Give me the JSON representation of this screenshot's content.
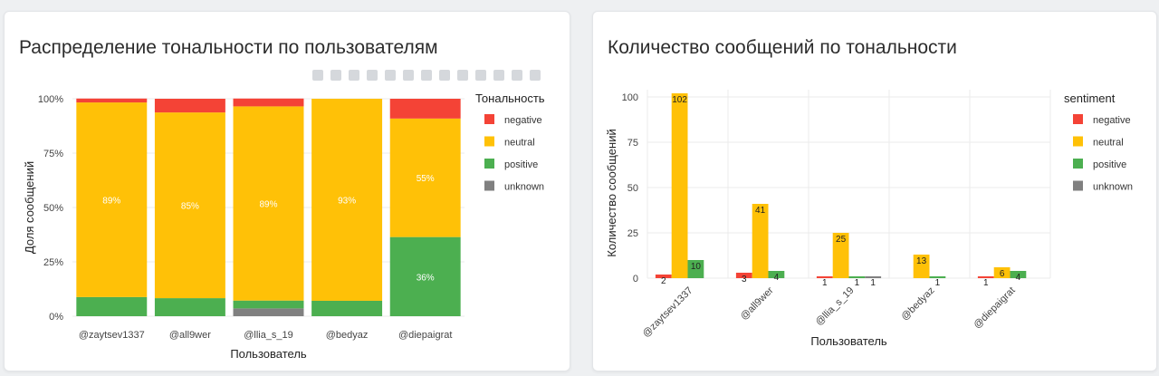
{
  "colors": {
    "negative": "#f44336",
    "neutral": "#ffc107",
    "positive": "#4caf50",
    "unknown": "#808080"
  },
  "toolbar": {
    "icons": [
      "camera-icon",
      "zoom-icon",
      "pan-icon",
      "box-select-icon",
      "lasso-icon",
      "zoom-in-icon",
      "zoom-out-icon",
      "autoscale-icon",
      "reset-axes-icon",
      "spike-lines-icon",
      "hover-closest-icon",
      "hover-compare-icon",
      "plotly-logo-icon"
    ]
  },
  "chart_data": [
    {
      "type": "bar",
      "stacked": true,
      "normalized": true,
      "title": "Распределение тональности по пользователям",
      "xlabel": "Пользователь",
      "ylabel": "Доля сообщений",
      "legend_title": "Тональность",
      "legend_position": "right",
      "categories": [
        "@zaytsev1337",
        "@all9wer",
        "@llia_s_19",
        "@bedyaz",
        "@diepaigrat"
      ],
      "y_ticks": [
        "0%",
        "25%",
        "50%",
        "75%",
        "100%"
      ],
      "ylim": [
        0,
        1
      ],
      "series": [
        {
          "name": "unknown",
          "key": "unknown",
          "values": [
            0,
            0,
            0.036,
            0,
            0
          ],
          "labels": [
            "",
            "",
            "",
            "",
            ""
          ]
        },
        {
          "name": "positive",
          "key": "positive",
          "values": [
            0.088,
            0.083,
            0.036,
            0.071,
            0.364
          ],
          "labels": [
            "",
            "",
            "",
            "",
            "36%"
          ]
        },
        {
          "name": "neutral",
          "key": "neutral",
          "values": [
            0.895,
            0.854,
            0.893,
            0.929,
            0.545
          ],
          "labels": [
            "89%",
            "85%",
            "89%",
            "93%",
            "55%"
          ]
        },
        {
          "name": "negative",
          "key": "negative",
          "values": [
            0.018,
            0.063,
            0.036,
            0,
            0.091
          ],
          "labels": [
            "",
            "",
            "",
            "",
            ""
          ]
        }
      ],
      "legend": [
        "negative",
        "neutral",
        "positive",
        "unknown"
      ],
      "grid": true
    },
    {
      "type": "bar",
      "grouped": true,
      "title": "Количество сообщений по тональности",
      "xlabel": "Пользователь",
      "ylabel": "Количество сообщений",
      "legend_title": "sentiment",
      "legend_position": "right",
      "categories": [
        "@zaytsev1337",
        "@all9wer",
        "@llia_s_19",
        "@bedyaz",
        "@diepaigrat"
      ],
      "y_ticks": [
        0,
        25,
        50,
        75,
        100
      ],
      "ylim": [
        0,
        104
      ],
      "series": [
        {
          "name": "negative",
          "key": "negative",
          "values": [
            2,
            3,
            1,
            0,
            1
          ]
        },
        {
          "name": "neutral",
          "key": "neutral",
          "values": [
            102,
            41,
            25,
            13,
            6
          ]
        },
        {
          "name": "positive",
          "key": "positive",
          "values": [
            10,
            4,
            1,
            1,
            4
          ]
        },
        {
          "name": "unknown",
          "key": "unknown",
          "values": [
            0,
            0,
            1,
            0,
            0
          ]
        }
      ],
      "legend": [
        "negative",
        "neutral",
        "positive",
        "unknown"
      ],
      "grid": true
    }
  ]
}
